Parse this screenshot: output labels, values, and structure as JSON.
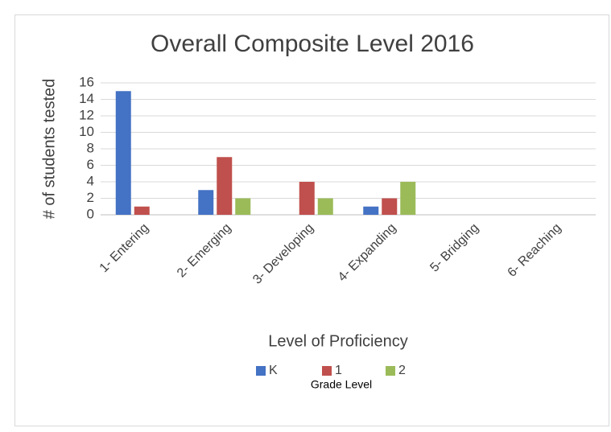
{
  "chart_data": {
    "type": "bar",
    "title": "Overall Composite Level 2016",
    "y_label": "# of students tested",
    "x_label": "Level of Proficiency",
    "legend_title": "Grade Level",
    "legend": "bottom",
    "grid": true,
    "categories": [
      "1- Entering",
      "2- Emerging",
      "3- Developing",
      "4- Expanding",
      "5- Bridging",
      "6- Reaching"
    ],
    "series": [
      {
        "name": "K",
        "color": "#4472c4",
        "values": [
          15,
          3,
          0,
          1,
          0,
          0
        ]
      },
      {
        "name": "1",
        "color": "#c0504d",
        "values": [
          1,
          7,
          4,
          2,
          0,
          0
        ]
      },
      {
        "name": "2",
        "color": "#9bbb59",
        "values": [
          0,
          2,
          2,
          4,
          0,
          0
        ]
      }
    ],
    "ylim": [
      0,
      16
    ],
    "yticks": [
      0,
      2,
      4,
      6,
      8,
      10,
      12,
      14,
      16
    ]
  }
}
